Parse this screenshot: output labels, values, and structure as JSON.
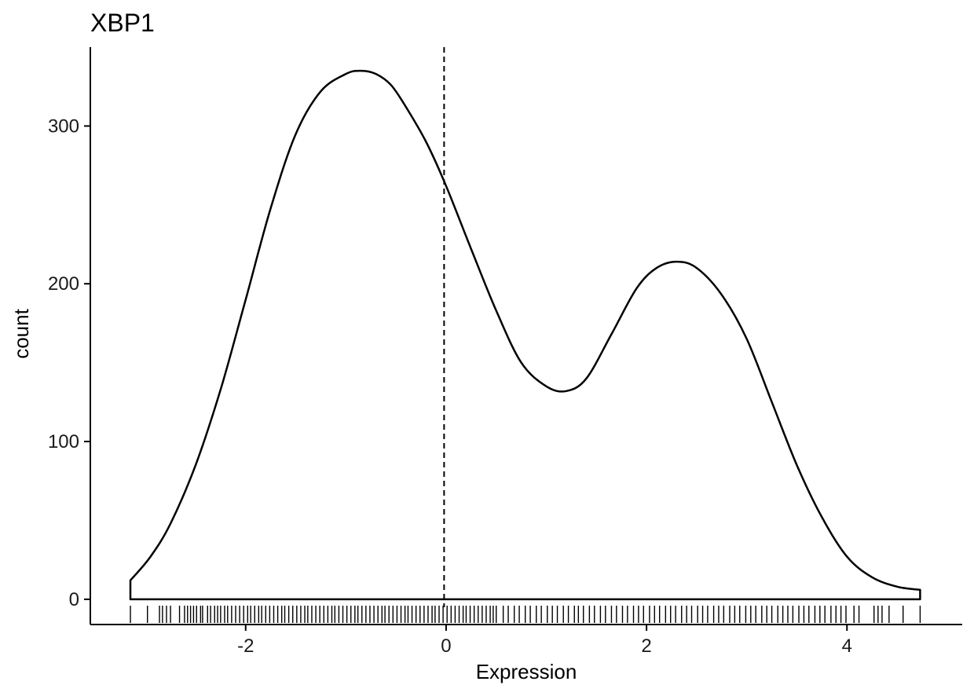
{
  "chart_data": {
    "type": "area",
    "title": "XBP1",
    "xlabel": "Expression",
    "ylabel": "count",
    "xlim": [
      -3.55,
      5.15
    ],
    "ylim": [
      -16,
      350
    ],
    "x_ticks": [
      -2,
      0,
      2,
      4
    ],
    "x_tick_labels": [
      "-2",
      "0",
      "2",
      "4"
    ],
    "y_ticks": [
      0,
      100,
      200,
      300
    ],
    "y_tick_labels": [
      "0",
      "100",
      "200",
      "300"
    ],
    "grid": false,
    "legend": "none",
    "reference_line": {
      "x": -0.02,
      "style": "dashed"
    },
    "series": [
      {
        "x": [
          -3.15,
          -2.95,
          -2.75,
          -2.5,
          -2.25,
          -2.0,
          -1.75,
          -1.5,
          -1.25,
          -1.0,
          -0.85,
          -0.7,
          -0.55,
          -0.4,
          -0.2,
          0.0,
          0.25,
          0.5,
          0.75,
          1.0,
          1.2,
          1.4,
          1.65,
          1.9,
          2.1,
          2.3,
          2.5,
          2.75,
          3.0,
          3.25,
          3.5,
          3.75,
          4.0,
          4.25,
          4.5,
          4.73
        ],
        "y": [
          12,
          27,
          48,
          85,
          133,
          190,
          248,
          295,
          322,
          333,
          335,
          333,
          326,
          312,
          290,
          262,
          222,
          183,
          150,
          135,
          132,
          140,
          168,
          197,
          210,
          214,
          210,
          193,
          165,
          125,
          85,
          52,
          27,
          14,
          8,
          6
        ]
      }
    ],
    "rug": [
      -3.15,
      -2.98,
      -2.86,
      -2.83,
      -2.79,
      -2.75,
      -2.66,
      -2.61,
      -2.58,
      -2.55,
      -2.52,
      -2.49,
      -2.45,
      -2.43,
      -2.38,
      -2.35,
      -2.31,
      -2.28,
      -2.25,
      -2.21,
      -2.18,
      -2.14,
      -2.1,
      -2.06,
      -2.02,
      -1.98,
      -1.95,
      -1.91,
      -1.87,
      -1.84,
      -1.8,
      -1.76,
      -1.72,
      -1.68,
      -1.64,
      -1.61,
      -1.57,
      -1.53,
      -1.49,
      -1.45,
      -1.41,
      -1.38,
      -1.34,
      -1.3,
      -1.26,
      -1.22,
      -1.18,
      -1.14,
      -1.11,
      -1.07,
      -1.03,
      -0.99,
      -0.95,
      -0.91,
      -0.88,
      -0.84,
      -0.8,
      -0.76,
      -0.72,
      -0.68,
      -0.64,
      -0.61,
      -0.57,
      -0.53,
      -0.49,
      -0.45,
      -0.41,
      -0.38,
      -0.34,
      -0.3,
      -0.26,
      -0.22,
      -0.18,
      -0.14,
      -0.11,
      -0.07,
      -0.03,
      0.01,
      0.05,
      0.09,
      0.13,
      0.17,
      0.2,
      0.24,
      0.28,
      0.32,
      0.36,
      0.4,
      0.44,
      0.47,
      0.5,
      0.57,
      0.62,
      0.68,
      0.73,
      0.79,
      0.84,
      0.9,
      0.95,
      1.01,
      1.06,
      1.11,
      1.17,
      1.22,
      1.28,
      1.32,
      1.37,
      1.43,
      1.48,
      1.54,
      1.59,
      1.65,
      1.7,
      1.76,
      1.81,
      1.87,
      1.92,
      1.97,
      2.03,
      2.08,
      2.13,
      2.19,
      2.24,
      2.29,
      2.35,
      2.4,
      2.45,
      2.51,
      2.56,
      2.61,
      2.67,
      2.72,
      2.77,
      2.83,
      2.88,
      2.93,
      2.99,
      3.04,
      3.09,
      3.15,
      3.2,
      3.25,
      3.31,
      3.36,
      3.41,
      3.46,
      3.52,
      3.57,
      3.62,
      3.68,
      3.73,
      3.78,
      3.84,
      3.89,
      3.94,
      3.99,
      4.07,
      4.12,
      4.27,
      4.31,
      4.35,
      4.42,
      4.56,
      4.73
    ]
  }
}
